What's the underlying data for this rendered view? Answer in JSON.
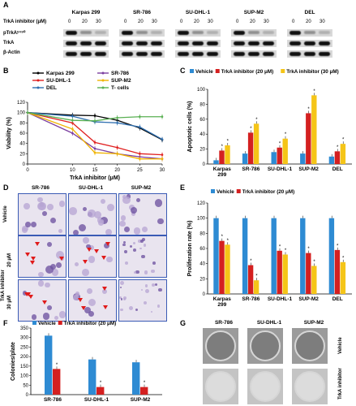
{
  "panel_labels": {
    "a": "A",
    "b": "B",
    "c": "C",
    "d": "D",
    "e": "E",
    "f": "F",
    "g": "G"
  },
  "panel_a": {
    "dose_label": "TrkA inhibitor (μM)",
    "cell_lines": [
      "Karpas 299",
      "SR-786",
      "SU-DHL-1",
      "SUP-M2",
      "DEL"
    ],
    "doses": [
      "0",
      "20",
      "30"
    ],
    "proteins": [
      "pTrkAʸ⁴⁹⁰",
      "TrkA",
      "β-Actin"
    ]
  },
  "panel_d": {
    "columns": [
      "SR-786",
      "SU-DHL-1",
      "SUP-M2"
    ],
    "rows": [
      "Vehicle",
      "20 μM",
      "30 μM"
    ],
    "row_group": "TrkA inhibitor"
  },
  "panel_g": {
    "columns": [
      "SR-786",
      "SU-DHL-1",
      "SUP-M2"
    ],
    "rows": [
      "Vehicle",
      "TrkA inhibitor"
    ]
  },
  "sig_marker": "*",
  "chart_data": [
    {
      "panel": "B",
      "type": "line",
      "xlabel": "TrkA inhibitor (μM)",
      "ylabel": "Viability (%)",
      "x": [
        0,
        10,
        15,
        20,
        25,
        30
      ],
      "xlim": [
        0,
        30
      ],
      "ylim": [
        0,
        120
      ],
      "yticks": [
        0,
        20,
        40,
        60,
        80,
        100,
        120
      ],
      "xticks": [
        0,
        10,
        15,
        20,
        25,
        30
      ],
      "series": [
        {
          "name": "Karpas 299",
          "color": "#000000",
          "values": [
            100,
            95,
            94,
            85,
            70,
            47
          ]
        },
        {
          "name": "SR-786",
          "color": "#7b3fa0",
          "values": [
            100,
            60,
            30,
            20,
            14,
            10
          ]
        },
        {
          "name": "SU-DHL-1",
          "color": "#e02020",
          "values": [
            100,
            80,
            42,
            32,
            20,
            18
          ]
        },
        {
          "name": "SUP-M2",
          "color": "#f0b400",
          "values": [
            100,
            68,
            22,
            20,
            10,
            10
          ]
        },
        {
          "name": "DEL",
          "color": "#2f6fb0",
          "values": [
            100,
            93,
            82,
            80,
            72,
            48
          ]
        },
        {
          "name": "T- cells",
          "color": "#59b052",
          "values": [
            100,
            85,
            84,
            90,
            92,
            92
          ]
        }
      ],
      "legend": [
        "Karpas 299",
        "SR-786",
        "SU-DHL-1",
        "SUP-M2",
        "DEL",
        "T- cells"
      ]
    },
    {
      "panel": "C",
      "type": "bar",
      "ylabel": "Apoptotic cells (%)",
      "categories": [
        "Karpas 299",
        "SR-786",
        "SU-DHL-1",
        "SUP-M2",
        "DEL"
      ],
      "ylim": [
        0,
        100
      ],
      "yticks": [
        0,
        20,
        40,
        60,
        80,
        100
      ],
      "series": [
        {
          "name": "Vehicle",
          "color": "#2e8bd3",
          "values": [
            5,
            14,
            16,
            14,
            10
          ]
        },
        {
          "name": "TrkA inhibitor (20 μM)",
          "color": "#d42020",
          "values": [
            18,
            42,
            22,
            68,
            17
          ]
        },
        {
          "name": "TrkA inhibitor (30 μM)",
          "color": "#f5c518",
          "values": [
            25,
            54,
            34,
            92,
            27
          ]
        }
      ]
    },
    {
      "panel": "E",
      "type": "bar",
      "ylabel": "Proliferation rate (%)",
      "categories": [
        "Karpas 299",
        "SR-786",
        "SU-DHL-1",
        "SUP-M2",
        "DEL"
      ],
      "ylim": [
        0,
        120
      ],
      "yticks": [
        0,
        20,
        40,
        60,
        80,
        100,
        120
      ],
      "series": [
        {
          "name": "Vehicle",
          "color": "#2e8bd3",
          "values": [
            100,
            100,
            100,
            100,
            100
          ]
        },
        {
          "name": "TrkA inhibitor (20 μM)",
          "color": "#d42020",
          "values": [
            70,
            38,
            57,
            54,
            58
          ]
        },
        {
          "name": "",
          "color": "#f5c518",
          "values": [
            65,
            18,
            52,
            37,
            42
          ]
        }
      ]
    },
    {
      "panel": "F",
      "type": "bar",
      "ylabel": "Colonies/plate",
      "categories": [
        "SR-786",
        "SU-DHL-1",
        "SUP-M2"
      ],
      "ylim": [
        0,
        350
      ],
      "yticks": [
        0,
        50,
        100,
        150,
        200,
        250,
        300,
        350
      ],
      "series": [
        {
          "name": "Vehicle",
          "color": "#2e8bd3",
          "values": [
            310,
            185,
            170
          ]
        },
        {
          "name": "TrkA inhibitor (20 μM)",
          "color": "#d42020",
          "values": [
            135,
            40,
            40
          ]
        }
      ]
    }
  ]
}
